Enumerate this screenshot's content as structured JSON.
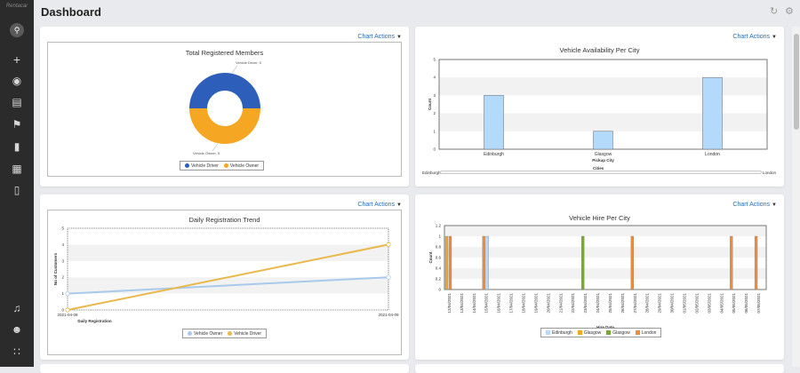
{
  "app": {
    "logo_text": "Rentacar",
    "title": "Dashboard"
  },
  "sidebar": {
    "items": [
      "search-icon",
      "plus-icon",
      "globe-icon",
      "news-icon",
      "flag-icon",
      "bar-chart-icon",
      "grid-icon",
      "document-icon",
      "bell-icon",
      "user-icon",
      "apps-icon"
    ]
  },
  "toolbar": {
    "refresh_icon": "refresh-icon",
    "settings_icon": "gear-icon"
  },
  "chart_actions_label": "Chart Actions",
  "charts": {
    "members": {
      "title": "Total Registered Members",
      "chart_data": {
        "type": "pie",
        "categories": [
          "Vehicle Driver",
          "Vehicle Owner"
        ],
        "values": [
          5,
          5
        ],
        "colors": [
          "#2d5fba",
          "#f5a623"
        ],
        "data_labels": [
          "Vehicle Driver, 5",
          "Vehicle Owner, 5"
        ]
      },
      "legend": [
        "Vehicle Driver",
        "Vehicle Owner"
      ]
    },
    "availability": {
      "title": "Vehicle Availability Per City",
      "chart_data": {
        "type": "bar",
        "categories": [
          "Edinburgh",
          "Glasgow",
          "London"
        ],
        "values": [
          3,
          1,
          4
        ],
        "xlabel": "Pickup City",
        "ylabel": "Count",
        "ylim": [
          0,
          5
        ],
        "yticks": [
          "0",
          "1",
          "2",
          "3",
          "4",
          "5"
        ],
        "color": "#b3d9fb"
      },
      "slider": {
        "label": "Cities",
        "start": "Edinburgh",
        "end": "London"
      }
    },
    "trend": {
      "title": "Daily Registration Trend",
      "chart_data": {
        "type": "line",
        "x": [
          "2021-04-08",
          "2021-04-09"
        ],
        "series": [
          {
            "name": "Vehicle Owner",
            "values": [
              1,
              2
            ],
            "color": "#a9c9ec"
          },
          {
            "name": "Vehicle Driver",
            "values": [
              0,
              4
            ],
            "color": "#e8b84a"
          }
        ],
        "xlabel": "Daily Registration",
        "ylabel": "No of Customers",
        "ylim": [
          0,
          5
        ],
        "yticks": [
          "0",
          "1",
          "2",
          "3",
          "4",
          "5"
        ]
      },
      "legend": [
        "Vehicle Owner",
        "Vehicle Driver"
      ]
    },
    "hire": {
      "title": "Vehicle Hire Per City",
      "chart_data": {
        "type": "bar",
        "categories": [
          "12/04/2021",
          "13/04/2021",
          "14/04/2021",
          "15/04/2021",
          "16/04/2021",
          "17/04/2021",
          "18/04/2021",
          "19/04/2021",
          "20/04/2021",
          "21/04/2021",
          "22/04/2021",
          "23/04/2021",
          "24/04/2021",
          "25/04/2021",
          "26/04/2021",
          "27/04/2021",
          "28/04/2021",
          "29/04/2021",
          "30/04/2021",
          "01/05/2021",
          "02/05/2021",
          "03/05/2021",
          "04/05/2021",
          "05/05/2021",
          "06/05/2021",
          "07/05/2021"
        ],
        "bars": [
          {
            "date": "12/04/2021",
            "offset": 0,
            "city": "Glasgow",
            "value": 1
          },
          {
            "date": "12/04/2021",
            "offset": 1,
            "city": "London",
            "value": 1
          },
          {
            "date": "15/04/2021",
            "offset": 0,
            "city": "London",
            "value": 1
          },
          {
            "date": "15/04/2021",
            "offset": 1,
            "city": "Edinburgh",
            "value": 1
          },
          {
            "date": "23/04/2021",
            "offset": 0,
            "city": "Glasgow (green)",
            "value": 1
          },
          {
            "date": "27/04/2021",
            "offset": 0,
            "city": "London",
            "value": 1
          },
          {
            "date": "05/05/2021",
            "offset": 0,
            "city": "London",
            "value": 1
          },
          {
            "date": "07/05/2021",
            "offset": 0,
            "city": "London",
            "value": 1
          }
        ],
        "xlabel": "Hire Date",
        "ylabel": "Count",
        "ylim": [
          0,
          1.2
        ],
        "yticks": [
          "0",
          "0.2",
          "0.4",
          "0.6",
          "0.8",
          "1",
          "1.2"
        ]
      },
      "legend": [
        {
          "name": "Edinburgh",
          "color": "#b3d9fb"
        },
        {
          "name": "Glasgow",
          "color": "#f5a623"
        },
        {
          "name": "Glasgow",
          "color": "#7aa63a"
        },
        {
          "name": "London",
          "color": "#ef8c3b"
        }
      ]
    }
  }
}
